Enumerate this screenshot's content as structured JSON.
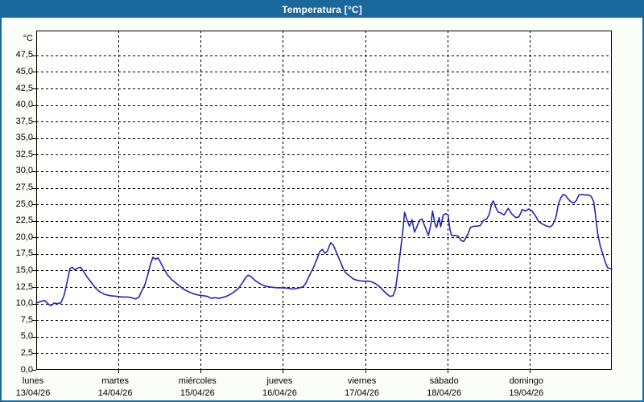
{
  "window": {
    "title": "Temperatura [°C]",
    "title_bar_color": "#1a689c",
    "border_color": "#1a689c",
    "background_color": "#fbfdf8"
  },
  "chart_data": {
    "type": "line",
    "title": "Temperatura [°C]",
    "ylabel": "°C",
    "unit_label": "°C",
    "ylim": [
      0,
      51.25
    ],
    "x_range_days": 7,
    "grid": true,
    "grid_style": "dashed",
    "line_color": "#2626ae",
    "plot_background": "#ffffff",
    "yticks": [
      {
        "v": 47.5,
        "label": "47,5"
      },
      {
        "v": 45.0,
        "label": "45,0"
      },
      {
        "v": 42.5,
        "label": "42,5"
      },
      {
        "v": 40.0,
        "label": "40,0"
      },
      {
        "v": 37.5,
        "label": "37,5"
      },
      {
        "v": 35.0,
        "label": "35,0"
      },
      {
        "v": 32.5,
        "label": "32,5"
      },
      {
        "v": 30.0,
        "label": "30,0"
      },
      {
        "v": 27.5,
        "label": "27,5"
      },
      {
        "v": 25.0,
        "label": "25,0"
      },
      {
        "v": 22.5,
        "label": "22,5"
      },
      {
        "v": 20.0,
        "label": "20,0"
      },
      {
        "v": 17.5,
        "label": "17,5"
      },
      {
        "v": 15.0,
        "label": "15,0"
      },
      {
        "v": 12.5,
        "label": "12,5"
      },
      {
        "v": 10.0,
        "label": "10,0"
      },
      {
        "v": 7.5,
        "label": "7,5"
      },
      {
        "v": 5.0,
        "label": "5,0"
      },
      {
        "v": 2.5,
        "label": "2,5"
      },
      {
        "v": 0.0,
        "label": "0,0"
      }
    ],
    "days": [
      {
        "name": "lunes",
        "date": "13/04/26"
      },
      {
        "name": "martes",
        "date": "14/04/26"
      },
      {
        "name": "miércoles",
        "date": "15/04/26"
      },
      {
        "name": "jueves",
        "date": "16/04/26"
      },
      {
        "name": "viernes",
        "date": "17/04/26"
      },
      {
        "name": "sábado",
        "date": "18/04/26"
      },
      {
        "name": "domingo",
        "date": "19/04/26"
      }
    ],
    "series": [
      {
        "name": "Temperatura",
        "points": [
          [
            0.0,
            10.1
          ],
          [
            0.05,
            10.3
          ],
          [
            0.1,
            10.5
          ],
          [
            0.15,
            9.9
          ],
          [
            0.18,
            9.7
          ],
          [
            0.22,
            10.1
          ],
          [
            0.25,
            10.0
          ],
          [
            0.3,
            10.1
          ],
          [
            0.34,
            11.3
          ],
          [
            0.38,
            13.5
          ],
          [
            0.41,
            15.3
          ],
          [
            0.44,
            15.5
          ],
          [
            0.47,
            15.1
          ],
          [
            0.51,
            15.4
          ],
          [
            0.54,
            15.5
          ],
          [
            0.58,
            14.8
          ],
          [
            0.62,
            14.0
          ],
          [
            0.67,
            13.2
          ],
          [
            0.72,
            12.4
          ],
          [
            0.77,
            11.8
          ],
          [
            0.83,
            11.4
          ],
          [
            0.9,
            11.2
          ],
          [
            0.98,
            11.1
          ],
          [
            1.05,
            11.0
          ],
          [
            1.11,
            11.0
          ],
          [
            1.16,
            10.9
          ],
          [
            1.21,
            10.7
          ],
          [
            1.25,
            11.0
          ],
          [
            1.28,
            11.8
          ],
          [
            1.32,
            12.8
          ],
          [
            1.36,
            14.5
          ],
          [
            1.39,
            16.0
          ],
          [
            1.42,
            17.0
          ],
          [
            1.45,
            16.7
          ],
          [
            1.48,
            16.9
          ],
          [
            1.51,
            16.3
          ],
          [
            1.55,
            15.3
          ],
          [
            1.6,
            14.3
          ],
          [
            1.65,
            13.6
          ],
          [
            1.7,
            13.1
          ],
          [
            1.75,
            12.6
          ],
          [
            1.79,
            12.2
          ],
          [
            1.85,
            11.8
          ],
          [
            1.91,
            11.5
          ],
          [
            1.97,
            11.3
          ],
          [
            2.03,
            11.2
          ],
          [
            2.08,
            11.1
          ],
          [
            2.13,
            10.8
          ],
          [
            2.17,
            10.9
          ],
          [
            2.22,
            10.8
          ],
          [
            2.26,
            10.9
          ],
          [
            2.31,
            11.1
          ],
          [
            2.36,
            11.4
          ],
          [
            2.41,
            11.8
          ],
          [
            2.46,
            12.3
          ],
          [
            2.51,
            13.2
          ],
          [
            2.55,
            14.0
          ],
          [
            2.58,
            14.3
          ],
          [
            2.62,
            14.0
          ],
          [
            2.66,
            13.5
          ],
          [
            2.71,
            13.1
          ],
          [
            2.75,
            12.8
          ],
          [
            2.8,
            12.6
          ],
          [
            2.85,
            12.5
          ],
          [
            2.93,
            12.4
          ],
          [
            3.01,
            12.4
          ],
          [
            3.07,
            12.3
          ],
          [
            3.12,
            12.2
          ],
          [
            3.17,
            12.3
          ],
          [
            3.21,
            12.4
          ],
          [
            3.25,
            12.6
          ],
          [
            3.28,
            13.1
          ],
          [
            3.32,
            14.2
          ],
          [
            3.37,
            15.4
          ],
          [
            3.41,
            16.6
          ],
          [
            3.45,
            17.9
          ],
          [
            3.48,
            18.2
          ],
          [
            3.51,
            17.6
          ],
          [
            3.54,
            17.9
          ],
          [
            3.58,
            19.2
          ],
          [
            3.61,
            18.9
          ],
          [
            3.65,
            17.8
          ],
          [
            3.69,
            16.6
          ],
          [
            3.73,
            15.4
          ],
          [
            3.76,
            14.7
          ],
          [
            3.81,
            14.2
          ],
          [
            3.86,
            13.7
          ],
          [
            3.91,
            13.5
          ],
          [
            3.97,
            13.4
          ],
          [
            4.03,
            13.4
          ],
          [
            4.08,
            13.3
          ],
          [
            4.13,
            13.0
          ],
          [
            4.18,
            12.5
          ],
          [
            4.22,
            12.0
          ],
          [
            4.26,
            11.5
          ],
          [
            4.3,
            11.1
          ],
          [
            4.34,
            11.2
          ],
          [
            4.37,
            12.2
          ],
          [
            4.4,
            15.0
          ],
          [
            4.43,
            18.0
          ],
          [
            4.46,
            21.2
          ],
          [
            4.48,
            23.8
          ],
          [
            4.51,
            22.6
          ],
          [
            4.54,
            21.7
          ],
          [
            4.57,
            22.7
          ],
          [
            4.6,
            20.8
          ],
          [
            4.63,
            21.6
          ],
          [
            4.66,
            22.6
          ],
          [
            4.69,
            22.8
          ],
          [
            4.71,
            22.2
          ],
          [
            4.75,
            20.9
          ],
          [
            4.77,
            20.3
          ],
          [
            4.8,
            22.0
          ],
          [
            4.82,
            24.0
          ],
          [
            4.85,
            22.0
          ],
          [
            4.87,
            21.5
          ],
          [
            4.9,
            23.0
          ],
          [
            4.92,
            21.6
          ],
          [
            4.95,
            23.4
          ],
          [
            4.98,
            23.6
          ],
          [
            5.01,
            23.4
          ],
          [
            5.03,
            21.3
          ],
          [
            5.05,
            20.3
          ],
          [
            5.09,
            20.3
          ],
          [
            5.13,
            20.2
          ],
          [
            5.17,
            19.5
          ],
          [
            5.2,
            19.4
          ],
          [
            5.25,
            20.5
          ],
          [
            5.28,
            21.5
          ],
          [
            5.32,
            21.7
          ],
          [
            5.36,
            21.7
          ],
          [
            5.4,
            21.8
          ],
          [
            5.44,
            22.6
          ],
          [
            5.48,
            22.8
          ],
          [
            5.51,
            23.5
          ],
          [
            5.54,
            25.2
          ],
          [
            5.56,
            25.5
          ],
          [
            5.59,
            24.5
          ],
          [
            5.62,
            23.8
          ],
          [
            5.65,
            23.7
          ],
          [
            5.69,
            23.4
          ],
          [
            5.74,
            24.4
          ],
          [
            5.78,
            23.6
          ],
          [
            5.83,
            23.0
          ],
          [
            5.87,
            23.1
          ],
          [
            5.91,
            24.2
          ],
          [
            5.95,
            24.0
          ],
          [
            5.99,
            24.3
          ],
          [
            6.03,
            24.0
          ],
          [
            6.07,
            23.3
          ],
          [
            6.11,
            22.4
          ],
          [
            6.16,
            22.0
          ],
          [
            6.21,
            21.7
          ],
          [
            6.25,
            21.6
          ],
          [
            6.28,
            21.9
          ],
          [
            6.32,
            23.0
          ],
          [
            6.35,
            25.0
          ],
          [
            6.38,
            26.0
          ],
          [
            6.41,
            26.5
          ],
          [
            6.44,
            26.3
          ],
          [
            6.47,
            25.8
          ],
          [
            6.5,
            25.4
          ],
          [
            6.54,
            25.2
          ],
          [
            6.57,
            25.6
          ],
          [
            6.6,
            26.4
          ],
          [
            6.64,
            26.5
          ],
          [
            6.68,
            26.4
          ],
          [
            6.72,
            26.4
          ],
          [
            6.75,
            26.2
          ],
          [
            6.78,
            25.4
          ],
          [
            6.8,
            23.5
          ],
          [
            6.83,
            20.5
          ],
          [
            6.86,
            18.7
          ],
          [
            6.89,
            17.5
          ],
          [
            6.92,
            16.3
          ],
          [
            6.95,
            15.4
          ],
          [
            6.98,
            15.3
          ],
          [
            7.0,
            15.2
          ]
        ]
      }
    ]
  }
}
